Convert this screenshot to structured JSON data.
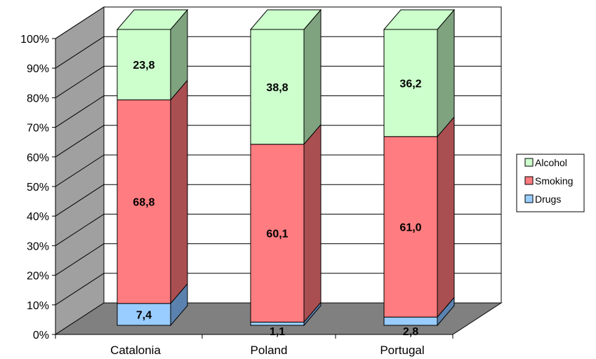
{
  "chart_data": {
    "type": "bar",
    "stacked": true,
    "percent": true,
    "three_d": true,
    "categories": [
      "Catalonia",
      "Poland",
      "Portugal"
    ],
    "series": [
      {
        "name": "Drugs",
        "values": [
          7.4,
          1.1,
          2.8
        ],
        "labels": [
          "7,4",
          "1,1",
          "2,8"
        ],
        "color": "#99CCFF",
        "side_color": "#5B82AE"
      },
      {
        "name": "Smoking",
        "values": [
          68.8,
          60.1,
          61.0
        ],
        "labels": [
          "68,8",
          "60,1",
          "61,0"
        ],
        "color": "#FF7C80",
        "side_color": "#A94F52"
      },
      {
        "name": "Alcohol",
        "values": [
          23.8,
          38.8,
          36.2
        ],
        "labels": [
          "23,8",
          "38,8",
          "36,2"
        ],
        "color": "#CCFFCC",
        "side_color": "#7FA37F"
      }
    ],
    "legend_order": [
      "Alcohol",
      "Smoking",
      "Drugs"
    ],
    "y_ticks": [
      "0%",
      "10%",
      "20%",
      "30%",
      "40%",
      "50%",
      "60%",
      "70%",
      "80%",
      "90%",
      "100%"
    ],
    "ylim": [
      0,
      100
    ],
    "title": "",
    "xlabel": "",
    "ylabel": "",
    "grid": true,
    "legend_position": "right",
    "colors": {
      "wall": "#ffffff",
      "side_wall": "#A0A0A0",
      "floor": "#808080",
      "gridline": "#000000"
    }
  }
}
